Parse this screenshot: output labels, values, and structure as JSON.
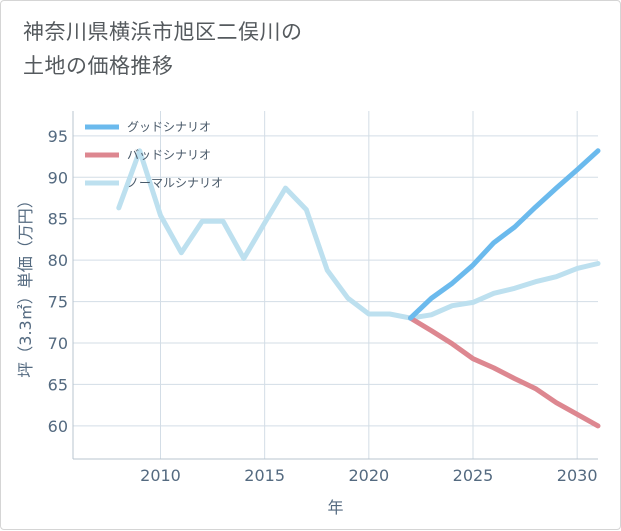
{
  "title": {
    "line1": "神奈川県横浜市旭区二俣川の",
    "line2": "土地の価格推移"
  },
  "colors": {
    "good": "#6bbaed",
    "bad": "#dd8790",
    "normal": "#bde0ef",
    "grid": "#d3dde6",
    "axis_text": "#546a80"
  },
  "chart_data": {
    "type": "line",
    "title": "神奈川県横浜市旭区二俣川の土地の価格推移",
    "xlabel": "年",
    "ylabel": "坪（3.3㎡）単価（万円）",
    "xlim": [
      2005.8,
      2031
    ],
    "ylim": [
      56,
      98
    ],
    "xticks": [
      2010,
      2015,
      2020,
      2025,
      2030
    ],
    "yticks": [
      60,
      65,
      70,
      75,
      80,
      85,
      90,
      95
    ],
    "grid": true,
    "legend_position": "top-left",
    "series": [
      {
        "name": "グッドシナリオ",
        "key": "good",
        "x": [
          2022,
          2023,
          2024,
          2025,
          2026,
          2027,
          2028,
          2029,
          2030,
          2031
        ],
        "y": [
          73.0,
          75.4,
          77.2,
          79.4,
          82.1,
          84.0,
          86.4,
          88.7,
          90.9,
          93.2
        ]
      },
      {
        "name": "バッドシナリオ",
        "key": "bad",
        "x": [
          2022,
          2023,
          2024,
          2025,
          2026,
          2027,
          2028,
          2029,
          2030,
          2031
        ],
        "y": [
          73.0,
          71.5,
          69.9,
          68.1,
          67.0,
          65.7,
          64.5,
          62.8,
          61.4,
          60.0
        ]
      },
      {
        "name": "ノーマルシナリオ",
        "key": "normal",
        "x": [
          2008,
          2009,
          2010,
          2011,
          2012,
          2013,
          2014,
          2015,
          2016,
          2017,
          2018,
          2019,
          2020,
          2021,
          2022,
          2023,
          2024,
          2025,
          2026,
          2027,
          2028,
          2029,
          2030,
          2031
        ],
        "y": [
          86.3,
          93.2,
          85.4,
          80.9,
          84.7,
          84.7,
          80.2,
          84.5,
          88.7,
          86.1,
          78.8,
          75.4,
          73.5,
          73.5,
          73.0,
          73.4,
          74.5,
          74.9,
          76.0,
          76.6,
          77.4,
          78.0,
          79.0,
          79.6
        ]
      }
    ]
  }
}
